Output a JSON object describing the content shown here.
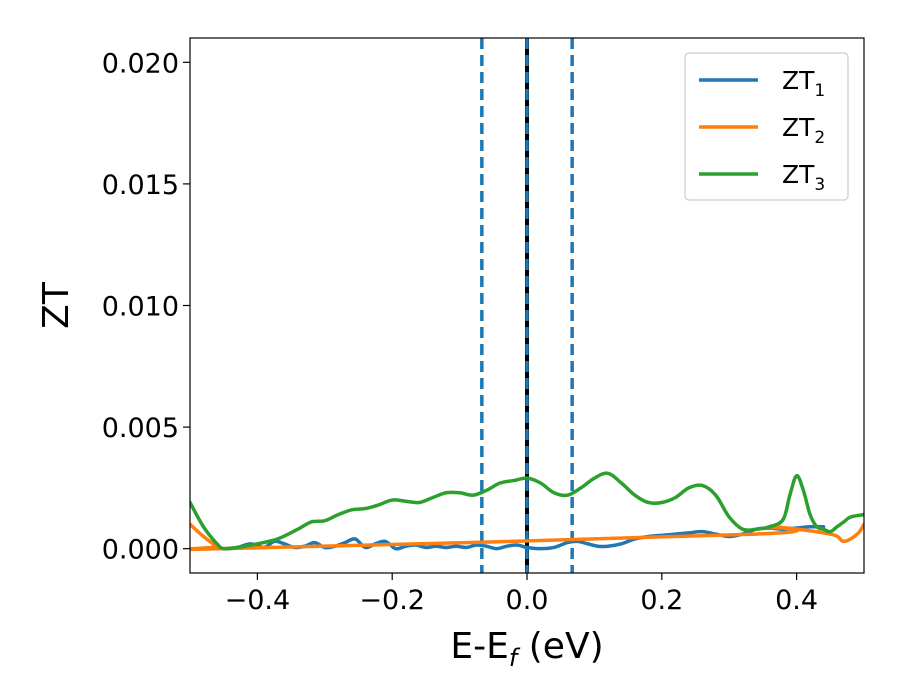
{
  "chart_data": {
    "type": "line",
    "xlabel_main": "E-E",
    "xlabel_sub": "f",
    "xlabel_unit": " (eV)",
    "ylabel": "ZT",
    "xlim": [
      -0.5,
      0.5
    ],
    "ylim": [
      -0.001,
      0.021
    ],
    "x_ticks": [
      -0.4,
      -0.2,
      0.0,
      0.2,
      0.4
    ],
    "x_tick_labels": [
      "−0.4",
      "−0.2",
      "0.0",
      "0.2",
      "0.4"
    ],
    "y_ticks": [
      0.0,
      0.005,
      0.01,
      0.015,
      0.02
    ],
    "y_tick_labels": [
      "0.000",
      "0.005",
      "0.010",
      "0.015",
      "0.020"
    ],
    "grid": false,
    "legend_position": "top-right",
    "vertical_lines": [
      {
        "x": -0.067,
        "style": "dashed",
        "color": "#1f77b4"
      },
      {
        "x": 0.0,
        "style": "solid",
        "color": "#000000"
      },
      {
        "x": 0.0,
        "style": "dashed",
        "color": "#1f77b4"
      },
      {
        "x": 0.067,
        "style": "dashed",
        "color": "#1f77b4"
      }
    ],
    "series": [
      {
        "name_main": "ZT",
        "name_sub": "1",
        "color": "#1f77b4",
        "x": [
          -0.45,
          -0.43,
          -0.41,
          -0.39,
          -0.375,
          -0.36,
          -0.345,
          -0.33,
          -0.315,
          -0.3,
          -0.285,
          -0.27,
          -0.255,
          -0.24,
          -0.225,
          -0.21,
          -0.195,
          -0.18,
          -0.165,
          -0.15,
          -0.135,
          -0.12,
          -0.105,
          -0.09,
          -0.075,
          -0.06,
          -0.045,
          -0.03,
          -0.015,
          0.0,
          0.02,
          0.04,
          0.06,
          0.075,
          0.09,
          0.105,
          0.12,
          0.14,
          0.16,
          0.18,
          0.2,
          0.22,
          0.24,
          0.26,
          0.28,
          0.3,
          0.32,
          0.34,
          0.36,
          0.38,
          0.4,
          0.42,
          0.44
        ],
        "y": [
          0.0,
          5e-05,
          0.0002,
          5e-05,
          0.0003,
          0.0002,
          5e-05,
          0.0001,
          0.00025,
          5e-05,
          0.0001,
          0.00025,
          0.0004,
          5e-05,
          0.0002,
          0.0003,
          0.0,
          0.0001,
          0.00015,
          5e-05,
          0.0001,
          5e-05,
          0.0001,
          5e-05,
          0.00015,
          0.0001,
          0.0,
          0.0001,
          0.00015,
          5e-05,
          0.0,
          5e-05,
          0.00025,
          0.0003,
          0.0002,
          0.0001,
          0.0001,
          0.0002,
          0.0004,
          0.0005,
          0.00055,
          0.0006,
          0.00065,
          0.0007,
          0.0006,
          0.0005,
          0.0006,
          0.0008,
          0.00085,
          0.0008,
          0.00085,
          0.0009,
          0.0009
        ]
      },
      {
        "name_main": "ZT",
        "name_sub": "2",
        "color": "#ff7f0e",
        "x": [
          -0.5,
          -0.48,
          -0.46,
          -0.45,
          0.34,
          0.36,
          0.45,
          0.47,
          0.49,
          0.5
        ],
        "y": [
          0.001,
          0.0005,
          0.0001,
          0.0,
          0.0006,
          0.0009,
          0.0006,
          0.0003,
          0.0006,
          0.001
        ]
      },
      {
        "name_main": "ZT",
        "name_sub": "3",
        "color": "#2ca02c",
        "x": [
          -0.5,
          -0.48,
          -0.46,
          -0.45,
          -0.43,
          -0.4,
          -0.37,
          -0.34,
          -0.32,
          -0.3,
          -0.28,
          -0.26,
          -0.24,
          -0.22,
          -0.2,
          -0.18,
          -0.16,
          -0.14,
          -0.12,
          -0.1,
          -0.08,
          -0.06,
          -0.04,
          -0.02,
          0.0,
          0.02,
          0.04,
          0.06,
          0.08,
          0.1,
          0.12,
          0.14,
          0.16,
          0.18,
          0.2,
          0.22,
          0.24,
          0.26,
          0.28,
          0.3,
          0.32,
          0.34,
          0.36,
          0.38,
          0.39,
          0.4,
          0.41,
          0.42,
          0.43,
          0.44,
          0.45,
          0.46,
          0.47,
          0.48,
          0.5
        ],
        "y": [
          0.0019,
          0.0009,
          0.0002,
          0.0,
          5e-05,
          0.0002,
          0.0004,
          0.0008,
          0.0011,
          0.00115,
          0.0014,
          0.0016,
          0.00165,
          0.0018,
          0.002,
          0.00195,
          0.0019,
          0.0021,
          0.0023,
          0.0023,
          0.0022,
          0.0024,
          0.0027,
          0.0028,
          0.0029,
          0.0027,
          0.0023,
          0.0022,
          0.0025,
          0.0029,
          0.0031,
          0.0027,
          0.0022,
          0.0019,
          0.0019,
          0.0021,
          0.0025,
          0.0026,
          0.0022,
          0.0013,
          0.0008,
          0.0008,
          0.0009,
          0.0012,
          0.0022,
          0.003,
          0.0024,
          0.0014,
          0.0009,
          0.0008,
          0.0007,
          0.0009,
          0.0011,
          0.0013,
          0.0014
        ]
      }
    ]
  }
}
